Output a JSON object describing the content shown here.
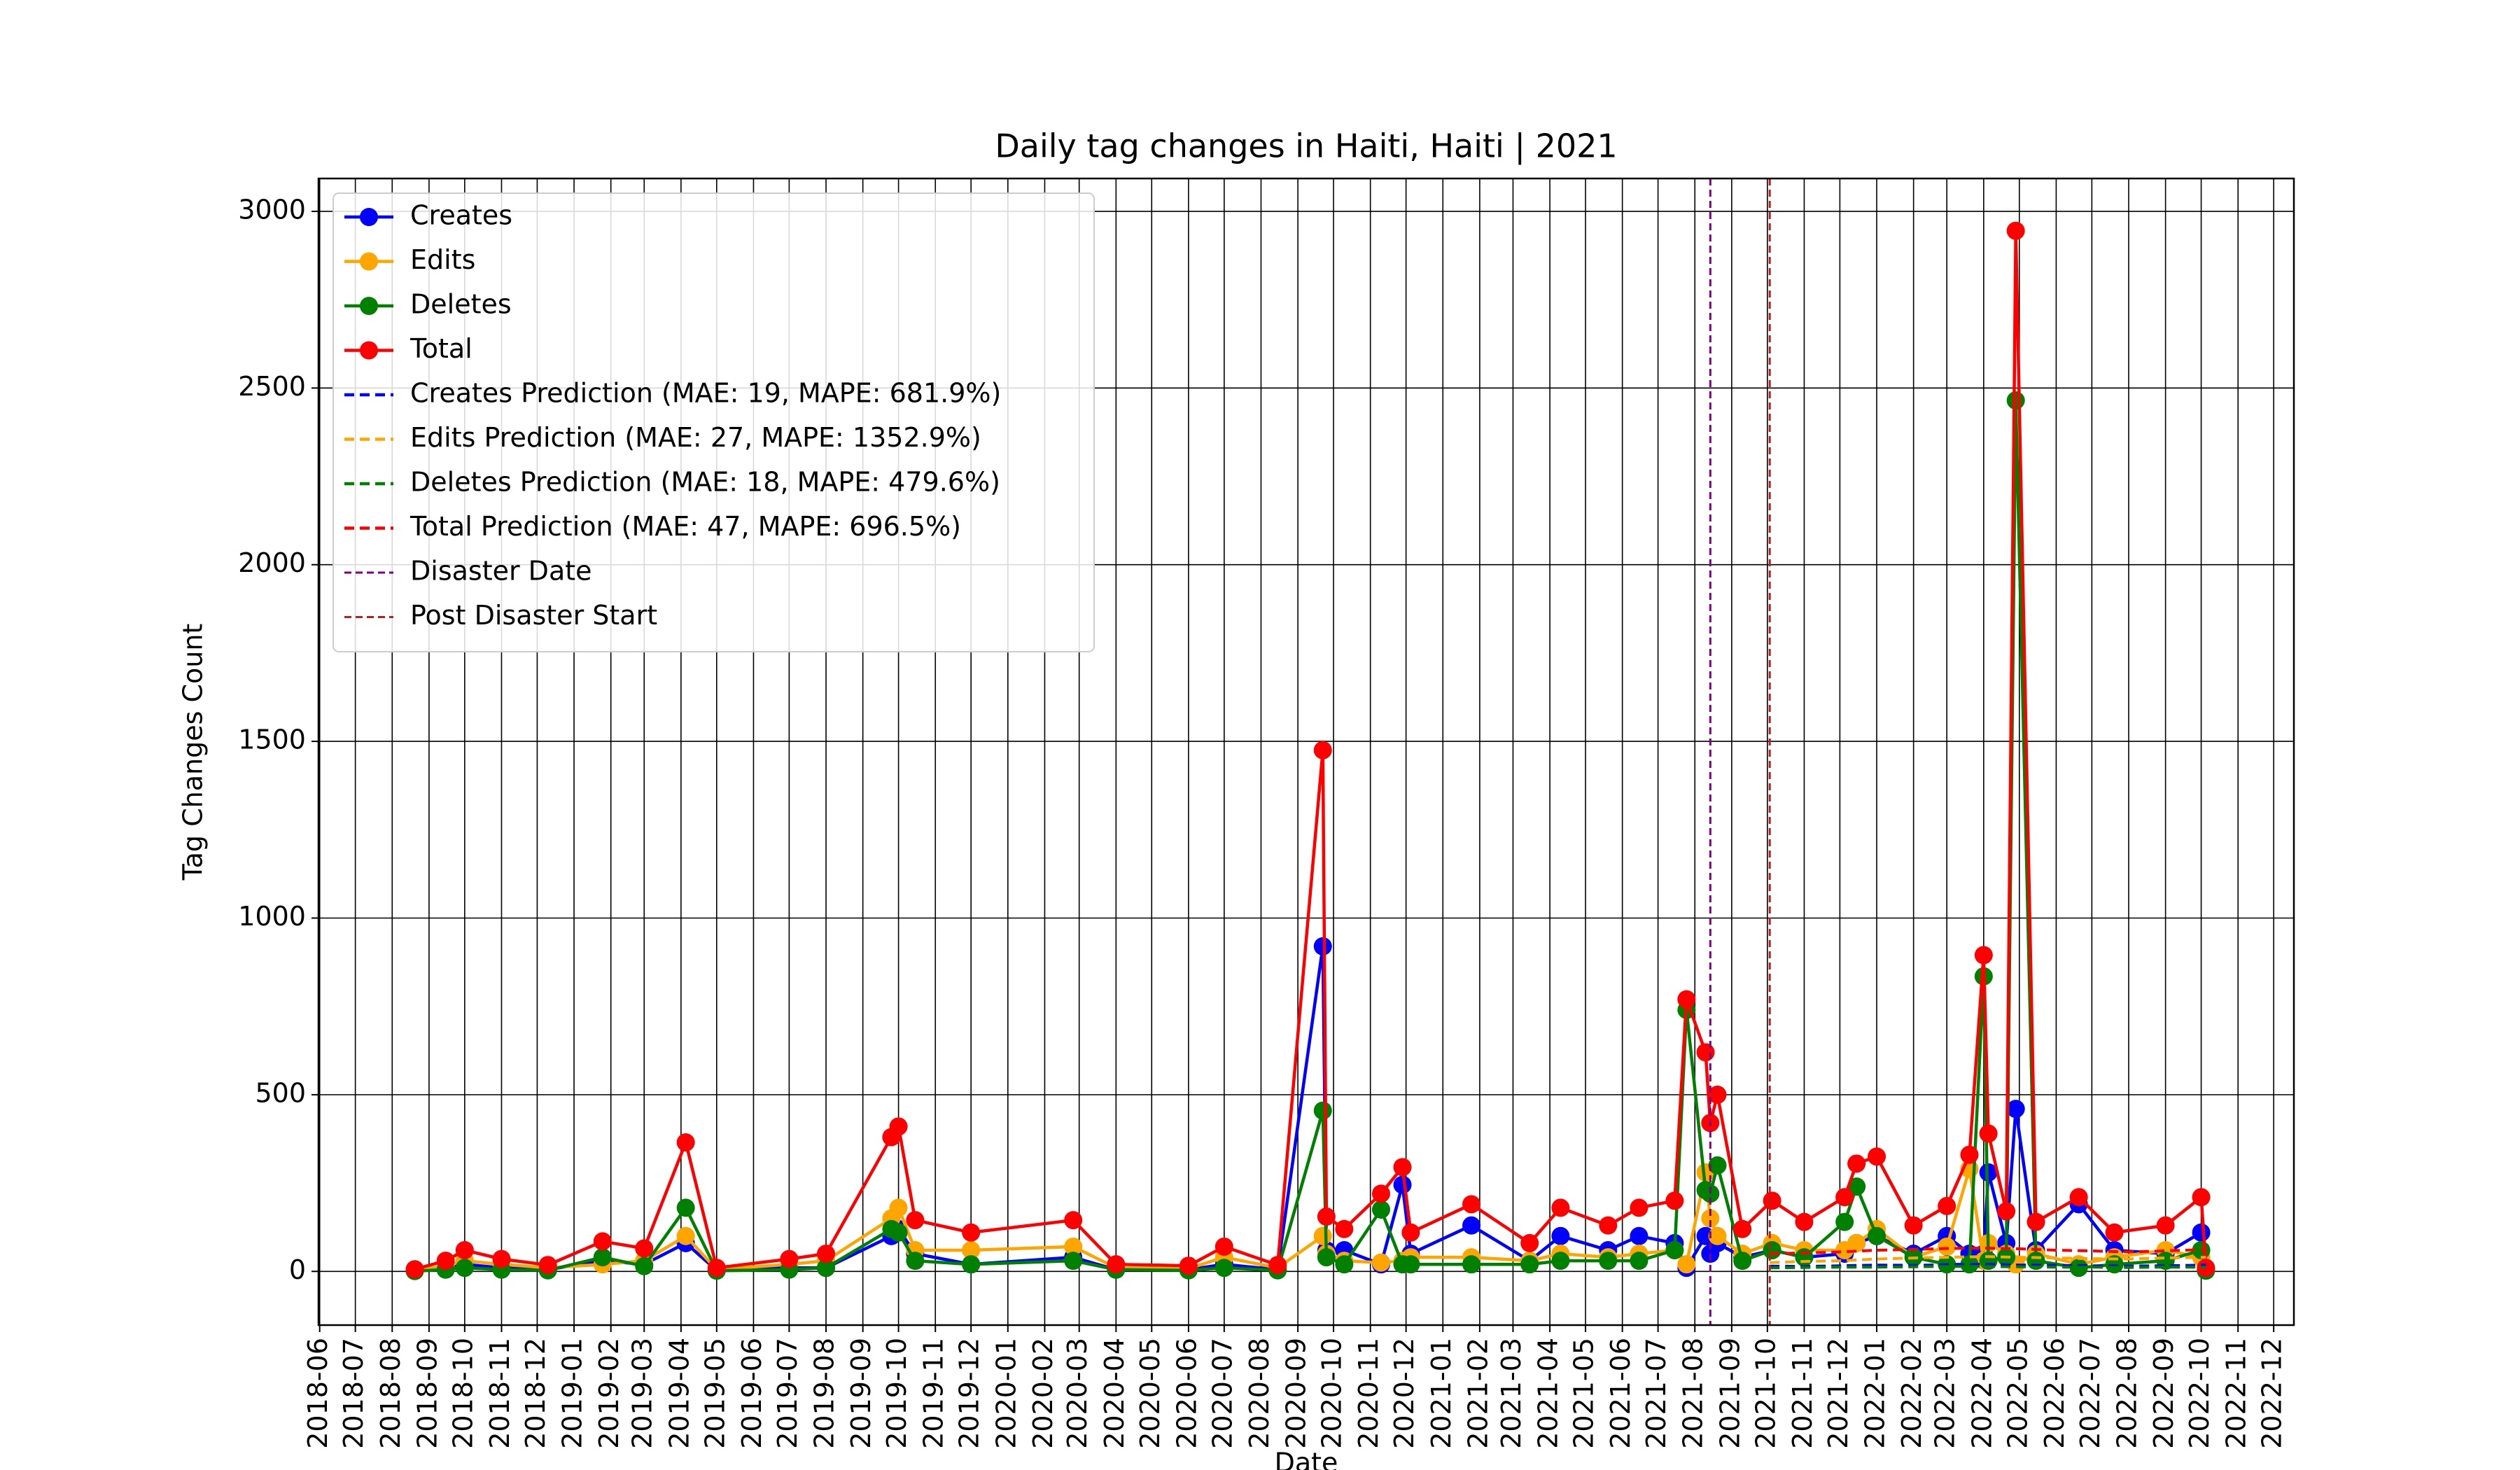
{
  "chart_data": {
    "type": "line",
    "title": "Daily tag changes in Haiti, Haiti | 2021",
    "xlabel": "Date",
    "ylabel": "Tag Changes Count",
    "xlim": [
      "2018-05-31",
      "2022-12-18"
    ],
    "ylim": [
      -152,
      3093
    ],
    "yticks": [
      0,
      500,
      1000,
      1500,
      2000,
      2500,
      3000
    ],
    "xticks": [
      "2018-06",
      "2018-07",
      "2018-08",
      "2018-09",
      "2018-10",
      "2018-11",
      "2018-12",
      "2019-01",
      "2019-02",
      "2019-03",
      "2019-04",
      "2019-05",
      "2019-06",
      "2019-07",
      "2019-08",
      "2019-09",
      "2019-10",
      "2019-11",
      "2019-12",
      "2020-01",
      "2020-02",
      "2020-03",
      "2020-04",
      "2020-05",
      "2020-06",
      "2020-07",
      "2020-08",
      "2020-09",
      "2020-10",
      "2020-11",
      "2020-12",
      "2021-01",
      "2021-02",
      "2021-03",
      "2021-04",
      "2021-05",
      "2021-06",
      "2021-07",
      "2021-08",
      "2021-09",
      "2021-10",
      "2021-11",
      "2021-12",
      "2022-01",
      "2022-02",
      "2022-03",
      "2022-04",
      "2022-05",
      "2022-06",
      "2022-07",
      "2022-08",
      "2022-09",
      "2022-10",
      "2022-11",
      "2022-12"
    ],
    "grid": true,
    "legend": "upper left",
    "x": [
      "2018-08-20",
      "2018-09-15",
      "2018-10-01",
      "2018-11-01",
      "2018-12-10",
      "2019-01-25",
      "2019-03-01",
      "2019-04-05",
      "2019-05-01",
      "2019-07-01",
      "2019-08-01",
      "2019-09-25",
      "2019-10-01",
      "2019-10-15",
      "2019-12-01",
      "2020-02-25",
      "2020-04-01",
      "2020-06-01",
      "2020-07-01",
      "2020-08-15",
      "2020-09-22",
      "2020-09-25",
      "2020-10-10",
      "2020-11-10",
      "2020-11-28",
      "2020-12-05",
      "2021-01-25",
      "2021-03-15",
      "2021-04-10",
      "2021-05-20",
      "2021-06-15",
      "2021-07-15",
      "2021-07-25",
      "2021-08-10",
      "2021-08-14",
      "2021-08-20",
      "2021-09-10",
      "2021-10-05",
      "2021-11-01",
      "2021-12-05",
      "2021-12-15",
      "2022-01-01",
      "2022-02-01",
      "2022-03-01",
      "2022-03-20",
      "2022-04-01",
      "2022-04-05",
      "2022-04-20",
      "2022-04-28",
      "2022-05-15",
      "2022-06-20",
      "2022-07-20",
      "2022-09-01",
      "2022-10-01",
      "2022-10-05"
    ],
    "series": [
      {
        "name": "Creates",
        "color": "#0000ff",
        "values": [
          2,
          10,
          20,
          10,
          5,
          30,
          20,
          80,
          3,
          10,
          10,
          100,
          120,
          50,
          20,
          40,
          5,
          5,
          20,
          5,
          920,
          60,
          60,
          20,
          245,
          50,
          130,
          30,
          100,
          60,
          100,
          80,
          10,
          100,
          50,
          80,
          40,
          60,
          40,
          50,
          80,
          100,
          50,
          100,
          50,
          50,
          280,
          80,
          460,
          60,
          190,
          60,
          50,
          110,
          5
        ]
      },
      {
        "name": "Edits",
        "color": "#ffa500",
        "values": [
          3,
          15,
          30,
          20,
          10,
          20,
          30,
          100,
          5,
          20,
          30,
          150,
          180,
          60,
          60,
          70,
          10,
          8,
          40,
          10,
          100,
          50,
          30,
          25,
          30,
          40,
          40,
          30,
          50,
          40,
          50,
          60,
          20,
          280,
          150,
          100,
          50,
          80,
          60,
          60,
          80,
          120,
          40,
          70,
          290,
          30,
          80,
          50,
          20,
          50,
          20,
          40,
          60,
          40,
          3
        ]
      },
      {
        "name": "Deletes",
        "color": "#008000",
        "values": [
          1,
          5,
          10,
          5,
          3,
          40,
          15,
          180,
          2,
          5,
          10,
          120,
          110,
          30,
          20,
          30,
          5,
          3,
          10,
          3,
          455,
          40,
          20,
          175,
          20,
          20,
          20,
          20,
          30,
          30,
          30,
          60,
          740,
          230,
          220,
          300,
          30,
          60,
          40,
          140,
          240,
          100,
          40,
          20,
          20,
          835,
          30,
          40,
          2465,
          30,
          10,
          20,
          30,
          60,
          2
        ]
      },
      {
        "name": "Total",
        "color": "#ff0000",
        "values": [
          6,
          30,
          60,
          35,
          18,
          85,
          65,
          365,
          10,
          35,
          50,
          380,
          410,
          145,
          110,
          145,
          20,
          16,
          70,
          18,
          1475,
          155,
          120,
          220,
          295,
          110,
          190,
          80,
          180,
          130,
          180,
          200,
          770,
          620,
          420,
          500,
          120,
          200,
          140,
          210,
          305,
          325,
          130,
          185,
          330,
          895,
          390,
          170,
          2945,
          140,
          210,
          110,
          130,
          210,
          10
        ]
      }
    ],
    "prediction_x": [
      "2021-10-03",
      "2021-11-01",
      "2021-12-01",
      "2022-01-01",
      "2022-02-01",
      "2022-03-01",
      "2022-04-01",
      "2022-05-01",
      "2022-06-01",
      "2022-07-01",
      "2022-08-01",
      "2022-09-01",
      "2022-10-05"
    ],
    "predictions": [
      {
        "name": "Creates Prediction (MAE: 19, MAPE: 681.9%)",
        "color": "#0000ff",
        "values": [
          15,
          14,
          16,
          18,
          17,
          19,
          20,
          18,
          17,
          16,
          15,
          16,
          18
        ]
      },
      {
        "name": "Edits Prediction (MAE: 27, MAPE: 1352.9%)",
        "color": "#ffa500",
        "values": [
          25,
          28,
          30,
          35,
          38,
          40,
          42,
          40,
          38,
          36,
          35,
          38,
          40
        ]
      },
      {
        "name": "Deletes Prediction (MAE: 18, MAPE: 479.6%)",
        "color": "#008000",
        "values": [
          10,
          11,
          12,
          12,
          13,
          14,
          14,
          13,
          12,
          12,
          11,
          12,
          12
        ]
      },
      {
        "name": "Total Prediction (MAE: 47, MAPE: 696.5%)",
        "color": "#ff0000",
        "values": [
          50,
          52,
          55,
          60,
          62,
          65,
          66,
          64,
          60,
          58,
          55,
          58,
          62
        ]
      }
    ],
    "vlines": [
      {
        "name": "Disaster Date",
        "date": "2021-08-14",
        "color": "#800080"
      },
      {
        "name": "Post Disaster Start",
        "date": "2021-10-03",
        "color": "#b22222"
      }
    ]
  }
}
